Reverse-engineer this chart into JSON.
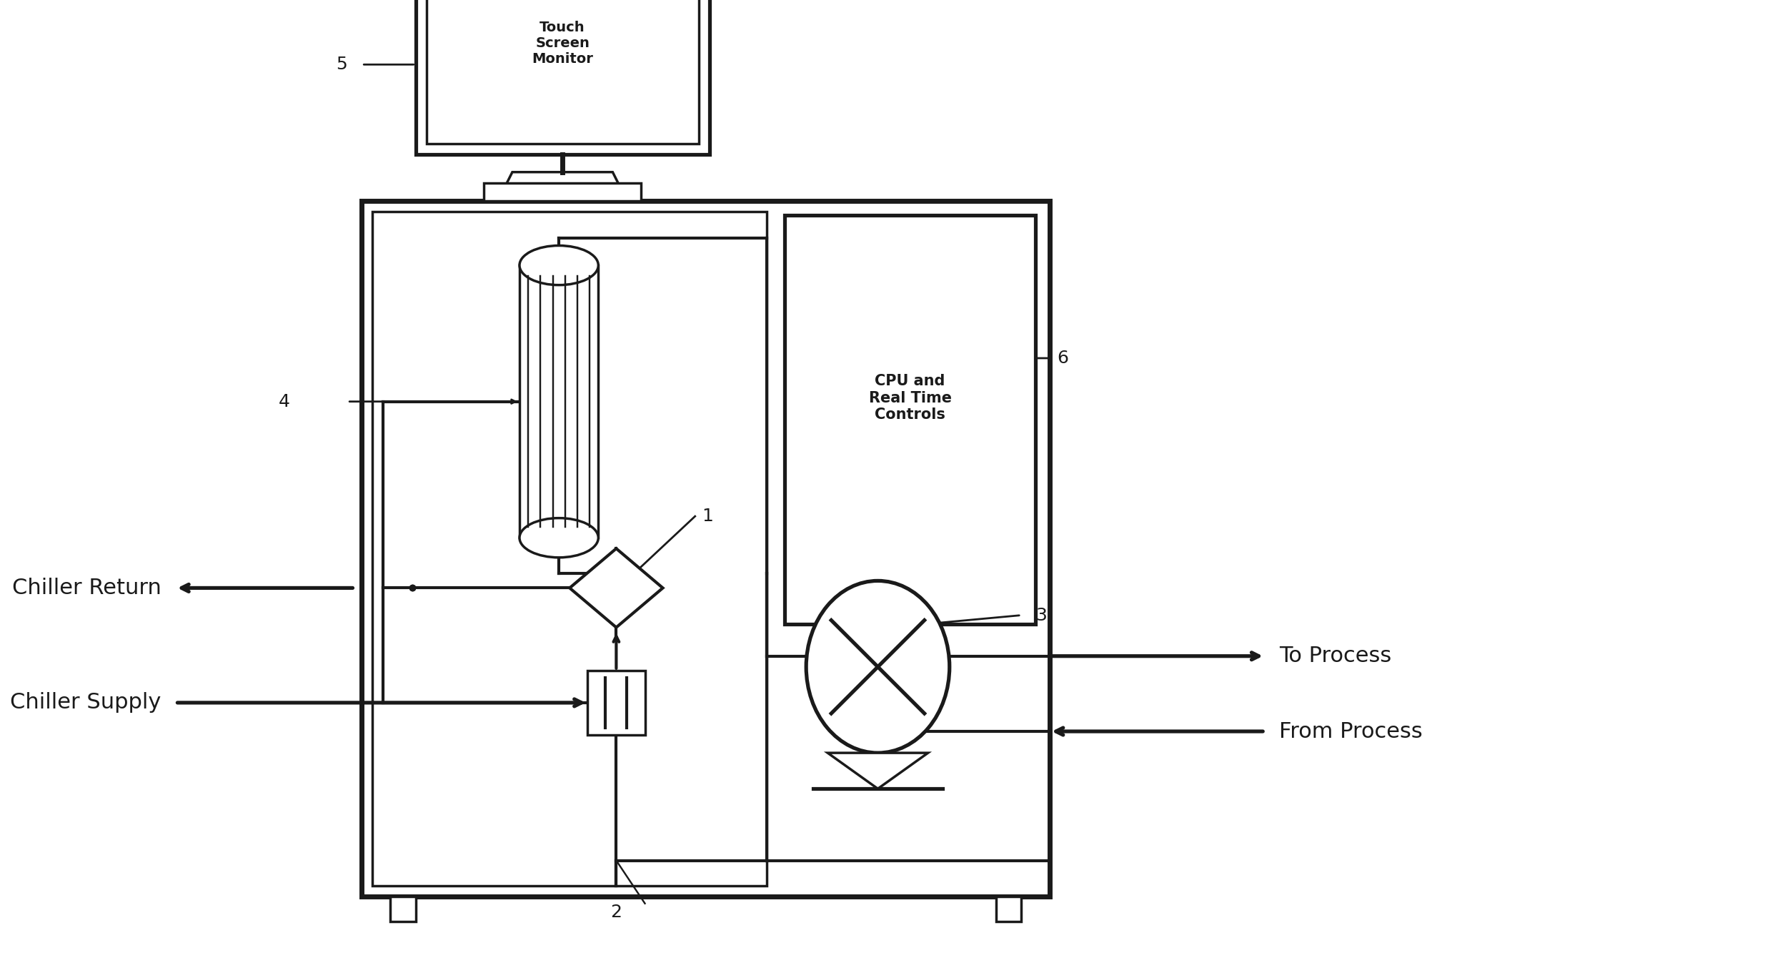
{
  "bg_color": "#ffffff",
  "line_color": "#1a1a1a",
  "lw": 2.5,
  "fig_width": 24.77,
  "fig_height": 13.54,
  "labels": {
    "chiller_return": "Chiller Return",
    "chiller_supply": "Chiller Supply",
    "to_process": "To Process",
    "from_process": "From Process",
    "touch_screen": "Touch\nScreen\nMonitor",
    "cpu": "CPU and\nReal Time\nControls",
    "num1": "1",
    "num2": "2",
    "num3": "3",
    "num4": "4",
    "num5": "5",
    "num6": "6"
  },
  "font_size_labels": 22,
  "font_size_numbers": 18,
  "font_size_cpu": 15,
  "font_size_monitor": 14
}
